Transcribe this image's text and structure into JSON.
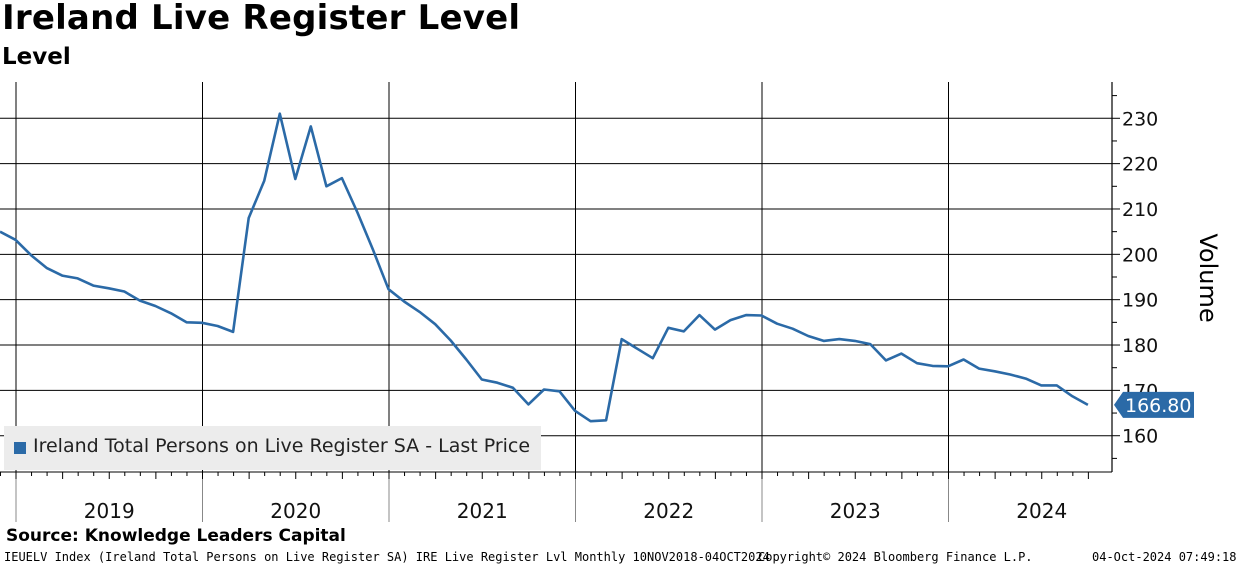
{
  "header": {
    "title": "Ireland Live Register Level",
    "subtitle": "Level"
  },
  "footer": {
    "source": "Source: Knowledge Leaders Capital",
    "ticker_info": "IEUELV Index (Ireland Total Persons on Live Register SA) IRE Live Register Lvl  Monthly 10NOV2018-04OCT2024",
    "copyright": "Copyright© 2024 Bloomberg Finance L.P.",
    "timestamp": "04-Oct-2024 07:49:18"
  },
  "colors": {
    "series": "#2b6aa7",
    "grid": "#000000",
    "legend_bg": "#ececec"
  },
  "chart_data": {
    "type": "line",
    "title": "Ireland Live Register Level",
    "subtitle": "Level",
    "ylabel": "Volume",
    "ylim": [
      152,
      238
    ],
    "yticks": [
      160,
      170,
      180,
      190,
      200,
      210,
      220,
      230
    ],
    "ytick_labels": [
      "160",
      "170",
      "180",
      "190",
      "200",
      "210",
      "220",
      "230"
    ],
    "year_labels": [
      "2019",
      "2020",
      "2021",
      "2022",
      "2023",
      "2024"
    ],
    "x_start": "2018-11",
    "legend": "Ireland Total Persons on Live Register SA - Last Price",
    "last_value_label": "166.80",
    "series": [
      {
        "name": "Ireland Total Persons on Live Register SA - Last Price",
        "x": [
          "2018-11",
          "2018-12",
          "2019-01",
          "2019-02",
          "2019-03",
          "2019-04",
          "2019-05",
          "2019-06",
          "2019-07",
          "2019-08",
          "2019-09",
          "2019-10",
          "2019-11",
          "2019-12",
          "2020-01",
          "2020-02",
          "2020-03",
          "2020-04",
          "2020-05",
          "2020-06",
          "2020-07",
          "2020-08",
          "2020-09",
          "2020-10",
          "2020-11",
          "2020-12",
          "2021-01",
          "2021-02",
          "2021-03",
          "2021-04",
          "2021-05",
          "2021-06",
          "2021-07",
          "2021-08",
          "2021-09",
          "2021-10",
          "2021-11",
          "2021-12",
          "2022-01",
          "2022-02",
          "2022-03",
          "2022-04",
          "2022-05",
          "2022-06",
          "2022-07",
          "2022-08",
          "2022-09",
          "2022-10",
          "2022-11",
          "2022-12",
          "2023-01",
          "2023-02",
          "2023-03",
          "2023-04",
          "2023-05",
          "2023-06",
          "2023-07",
          "2023-08",
          "2023-09",
          "2023-10",
          "2023-11",
          "2023-12",
          "2024-01",
          "2024-02",
          "2024-03",
          "2024-04",
          "2024-05",
          "2024-06",
          "2024-07",
          "2024-08",
          "2024-09"
        ],
        "values": [
          205.0,
          203.2,
          199.8,
          197.0,
          195.3,
          194.7,
          193.1,
          192.5,
          191.8,
          189.8,
          188.6,
          187.0,
          185.0,
          184.9,
          184.2,
          182.9,
          208.0,
          216.2,
          231.0,
          216.6,
          228.2,
          215.0,
          216.8,
          209.2,
          201.0,
          192.3,
          189.6,
          187.3,
          184.6,
          181.0,
          176.8,
          172.4,
          171.7,
          170.6,
          166.9,
          170.2,
          169.8,
          165.5,
          163.2,
          163.4,
          181.3,
          179.2,
          177.1,
          183.8,
          183.0,
          186.6,
          183.4,
          185.5,
          186.6,
          186.5,
          184.7,
          183.6,
          182.0,
          180.9,
          181.3,
          180.9,
          180.2,
          176.6,
          178.1,
          176.0,
          175.4,
          175.3,
          176.8,
          174.8,
          174.2,
          173.5,
          172.6,
          171.1,
          171.1,
          168.7,
          166.8
        ]
      }
    ]
  }
}
